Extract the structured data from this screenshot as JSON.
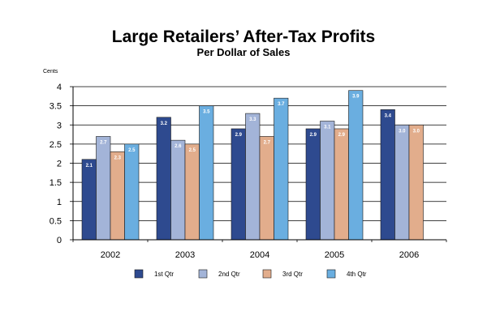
{
  "chart_data": {
    "type": "bar",
    "title": "Large Retailers’ After-Tax Profits",
    "subtitle": "Per Dollar of Sales",
    "ylabel": "Cents",
    "xlabel": "",
    "ylim": [
      0,
      4
    ],
    "yticks": [
      "0",
      "0.5",
      "1",
      "1.5",
      "2",
      "2.5",
      "3",
      "3.5",
      "4"
    ],
    "grid": true,
    "legend_position": "bottom",
    "categories": [
      "2002",
      "2003",
      "2004",
      "2005",
      "2006"
    ],
    "series": [
      {
        "name": "1st Qtr",
        "color": "#2e4a8f",
        "values": [
          2.1,
          3.2,
          2.9,
          2.9,
          3.4
        ],
        "labels": [
          "2.1",
          "3.2",
          "2.9",
          "2.9",
          "3.4"
        ]
      },
      {
        "name": "2nd Qtr",
        "color": "#a3b4d8",
        "values": [
          2.7,
          2.6,
          3.3,
          3.1,
          3.0
        ],
        "labels": [
          "2.7",
          "2.6",
          "3.3",
          "3.1",
          "3.0"
        ]
      },
      {
        "name": "3rd Qtr",
        "color": "#e2ad8c",
        "values": [
          2.3,
          2.5,
          2.7,
          2.9,
          3.0
        ],
        "labels": [
          "2.3",
          "2.5",
          "2.7",
          "2.9",
          "3.0"
        ]
      },
      {
        "name": "4th Qtr",
        "color": "#6aaee0",
        "values": [
          2.5,
          3.5,
          3.7,
          3.9,
          null
        ],
        "labels": [
          "2.5",
          "3.5",
          "3.7",
          "3.9",
          ""
        ]
      }
    ]
  }
}
